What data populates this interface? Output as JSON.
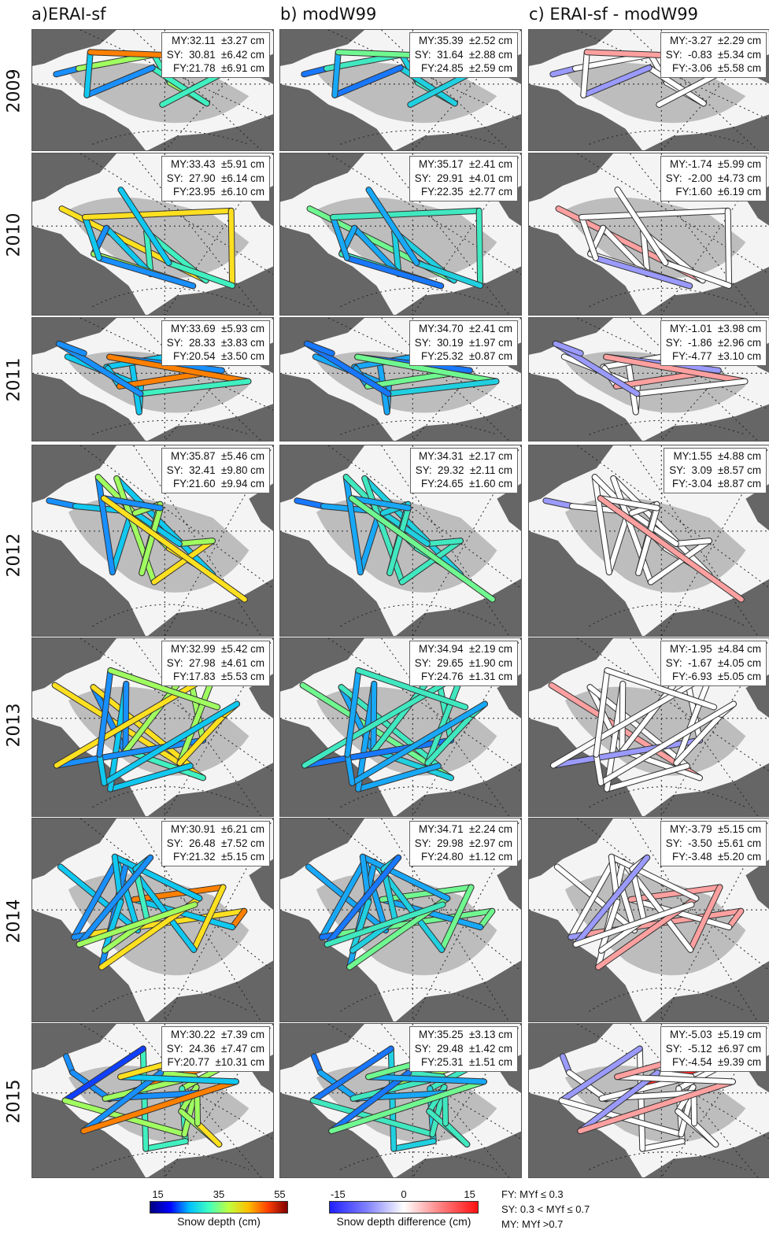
{
  "column_titles": [
    "a)ERAI-sf",
    "b) modW99",
    "c) ERAI-sf - modW99"
  ],
  "years": [
    "2009",
    "2010",
    "2011",
    "2012",
    "2013",
    "2014",
    "2015"
  ],
  "panel_stats": [
    [
      [
        "MY:32.11  ±3.27 cm",
        "SY:  30.81  ±6.42 cm",
        "FY:21.78  ±6.91 cm"
      ],
      [
        "MY:35.39  ±2.52 cm",
        "SY:  31.64  ±2.88 cm",
        "FY:24.85  ±2.59 cm"
      ],
      [
        "MY:-3.27  ±2.29 cm",
        "SY:  -0.83  ±5.34 cm",
        "FY:-3.06  ±5.58 cm"
      ]
    ],
    [
      [
        "MY:33.43  ±5.91 cm",
        "SY:  27.90  ±6.14 cm",
        "FY:23.95  ±6.10 cm"
      ],
      [
        "MY:35.17  ±2.41 cm",
        "SY:  29.91  ±4.01 cm",
        "FY:22.35  ±2.77 cm"
      ],
      [
        "MY:-1.74  ±5.99 cm",
        "SY:  -2.00  ±4.73 cm",
        "FY:1.60  ±6.19 cm"
      ]
    ],
    [
      [
        "MY:33.69  ±5.93 cm",
        "SY:  28.33  ±3.83 cm",
        "FY:20.54  ±3.50 cm"
      ],
      [
        "MY:34.70  ±2.41 cm",
        "SY:  30.19  ±1.97 cm",
        "FY:25.32  ±0.87 cm"
      ],
      [
        "MY:-1.01  ±3.98 cm",
        "SY:  -1.86  ±2.96 cm",
        "FY:-4.77  ±3.10 cm"
      ]
    ],
    [
      [
        "MY:35.87  ±5.46 cm",
        "SY:  32.41  ±9.80 cm",
        "FY:21.60  ±9.94 cm"
      ],
      [
        "MY:34.31  ±2.17 cm",
        "SY:  29.32  ±2.11 cm",
        "FY:24.65  ±1.60 cm"
      ],
      [
        "MY:1.55  ±4.88 cm",
        "SY:  3.09  ±8.57 cm",
        "FY:-3.04  ±8.87 cm"
      ]
    ],
    [
      [
        "MY:32.99  ±5.42 cm",
        "SY:  27.98  ±4.61 cm",
        "FY:17.83  ±5.53 cm"
      ],
      [
        "MY:34.94  ±2.19 cm",
        "SY:  29.65  ±1.90 cm",
        "FY:24.76  ±1.31 cm"
      ],
      [
        "MY:-1.95  ±4.84 cm",
        "SY:  -1.67  ±4.05 cm",
        "FY:-6.93  ±5.05 cm"
      ]
    ],
    [
      [
        "MY:30.91  ±6.21 cm",
        "SY:  26.48  ±7.52 cm",
        "FY:21.32  ±5.15 cm"
      ],
      [
        "MY:34.71  ±2.24 cm",
        "SY:  29.98  ±2.97 cm",
        "FY:24.80  ±1.12 cm"
      ],
      [
        "MY:-3.79  ±5.15 cm",
        "SY:  -3.50  ±5.61 cm",
        "FY:-3.48  ±5.20 cm"
      ]
    ],
    [
      [
        "MY:30.22  ±7.39 cm",
        "SY:  24.36  ±7.47 cm",
        "FY:20.77  ±10.31 cm"
      ],
      [
        "MY:35.25  ±3.13 cm",
        "SY:  29.48  ±1.42 cm",
        "FY:25.31  ±1.51 cm"
      ],
      [
        "MY:-5.03  ±5.19 cm",
        "SY:  -5.12  ±6.97 cm",
        "FY:-4.54  ±9.39 cm"
      ]
    ]
  ],
  "colorbar_depth": {
    "ticks": [
      "15",
      "35",
      "55"
    ],
    "label": "Snow depth (cm)",
    "colors": [
      "#00007f",
      "#0000ff",
      "#00bfff",
      "#40ffbf",
      "#bfff40",
      "#ffbf00",
      "#ff4000",
      "#7f0000"
    ]
  },
  "colorbar_diff": {
    "ticks": [
      "-15",
      "0",
      "15"
    ],
    "label": "Snow depth difference (cm)",
    "colors": [
      "#2020ff",
      "#8080ff",
      "#ffffff",
      "#ff8080",
      "#ff1010"
    ]
  },
  "ice_type_key": [
    "FY:  MYf ≤ 0.3",
    "SY: 0.3 < MYf  ≤ 0.7",
    "MY: MYf >0.7"
  ],
  "map_colors": {
    "land": "#666666",
    "sea_ice": "#f4f4f4",
    "multiyear_ice": "#bdbdbd",
    "gridlines": "#222222"
  }
}
